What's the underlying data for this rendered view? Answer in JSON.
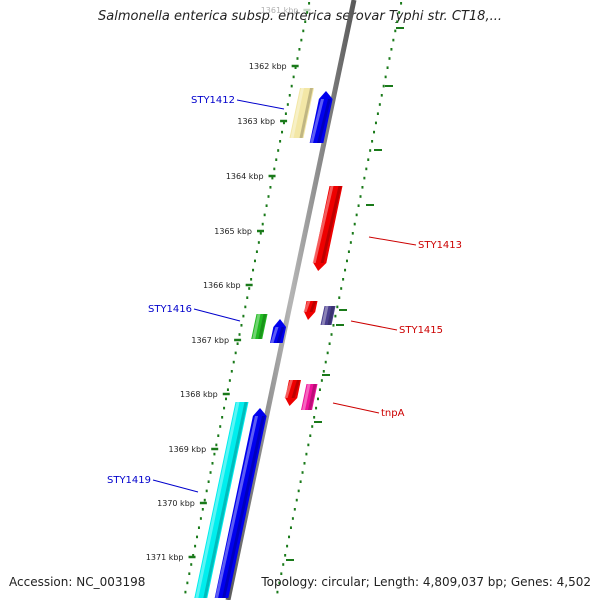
{
  "title": "Salmonella enterica subsp. enterica serovar Typhi str. CT18,...",
  "footer": {
    "accession": "Accession: NC_003198",
    "summary": "Topology: circular; Length: 4,809,037 bp; Genes: 4,502"
  },
  "scale": {
    "ticks": [
      {
        "label": "1361 kbp",
        "faded": true
      },
      {
        "label": "1362 kbp",
        "faded": false
      },
      {
        "label": "1363 kbp",
        "faded": false
      },
      {
        "label": "1364 kbp",
        "faded": false
      },
      {
        "label": "1365 kbp",
        "faded": false
      },
      {
        "label": "1366 kbp",
        "faded": false
      },
      {
        "label": "1367 kbp",
        "faded": false
      },
      {
        "label": "1368 kbp",
        "faded": false
      },
      {
        "label": "1369 kbp",
        "faded": false
      },
      {
        "label": "1370 kbp",
        "faded": false
      },
      {
        "label": "1371 kbp",
        "faded": false
      }
    ]
  },
  "gene_labels": [
    {
      "id": "STY1412",
      "text": "STY1412",
      "color": "#0000cc"
    },
    {
      "id": "STY1413",
      "text": "STY1413",
      "color": "#cc0000"
    },
    {
      "id": "STY1415",
      "text": "STY1415",
      "color": "#cc0000"
    },
    {
      "id": "STY1416",
      "text": "STY1416",
      "color": "#0000cc"
    },
    {
      "id": "tnpA",
      "text": "tnpA",
      "color": "#cc0000"
    },
    {
      "id": "STY1419",
      "text": "STY1419",
      "color": "#0000cc"
    }
  ],
  "colors": {
    "backbone": "#8a8a8a",
    "dots": "#1a7a1a",
    "blue": "#0000ee",
    "red": "#ee0000",
    "pale_yellow": "#f3e7a6",
    "green": "#22bb22",
    "purple": "#4a3f8f",
    "magenta": "#ee1199",
    "cyan": "#00eeee"
  }
}
